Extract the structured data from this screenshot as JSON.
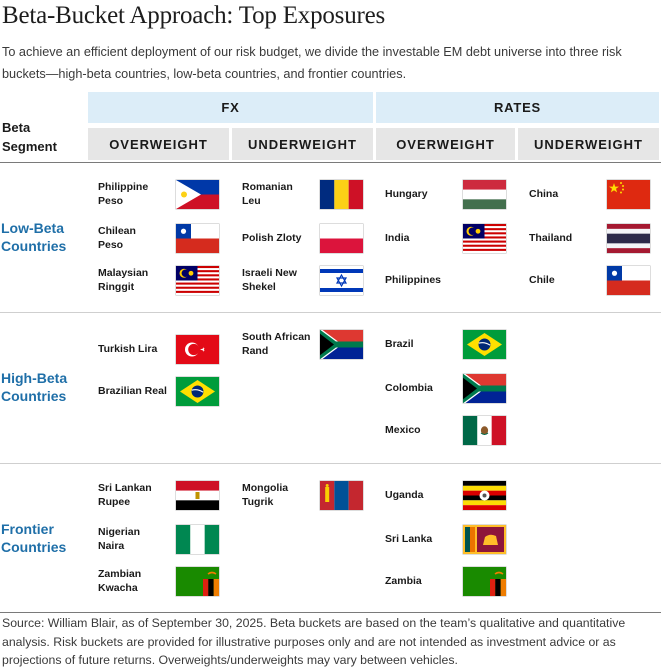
{
  "title": "Beta-Bucket Approach: Top Exposures",
  "subtitle": "To achieve an efficient deployment of our risk budget, we divide the investable EM debt universe into three risk buckets—high-beta countries, low-beta countries, and frontier countries.",
  "headers": {
    "fx": "FX",
    "rates": "RATES",
    "beta_segment_line1": "Beta",
    "beta_segment_line2": "Segment",
    "fx_overweight": "OVERWEIGHT",
    "fx_underweight": "UNDERWEIGHT",
    "rates_overweight": "OVERWEIGHT",
    "rates_underweight": "UNDERWEIGHT"
  },
  "segments": [
    {
      "label_line1": "Low-Beta",
      "label_line2": "Countries",
      "fx_overweight": [
        {
          "line1": "Philippine",
          "line2": "Peso",
          "flag": "philippines-flag"
        },
        {
          "line1": "Chilean",
          "line2": "Peso",
          "flag": "chile-flag"
        },
        {
          "line1": "Malaysian",
          "line2": "Ringgit",
          "flag": "malaysia-flag"
        }
      ],
      "fx_underweight": [
        {
          "line1": "Romanian",
          "line2": "Leu",
          "flag": "romania-flag"
        },
        {
          "line1": "Polish Zloty",
          "line2": "",
          "flag": "poland-flag"
        },
        {
          "line1": "Israeli New",
          "line2": "Shekel",
          "flag": "israel-flag"
        }
      ],
      "rates_overweight": [
        {
          "line1": "Hungary",
          "line2": "",
          "flag": "hungary-flag"
        },
        {
          "line1": "India",
          "line2": "",
          "flag": "malaysia-flag"
        },
        {
          "line1": "Philippines",
          "line2": "",
          "flag": ""
        }
      ],
      "rates_underweight": [
        {
          "line1": "China",
          "line2": "",
          "flag": "china-flag"
        },
        {
          "line1": "Thailand",
          "line2": "",
          "flag": "thailand-flag"
        },
        {
          "line1": "Chile",
          "line2": "",
          "flag": "chile-flag"
        }
      ]
    },
    {
      "label_line1": "High-Beta",
      "label_line2": "Countries",
      "fx_overweight": [
        {
          "line1": "Turkish Lira",
          "line2": "",
          "flag": "turkey-flag"
        },
        {
          "line1": "Brazilian Real",
          "line2": "",
          "flag": "brazil-flag"
        }
      ],
      "fx_underweight": [
        {
          "line1": "South African",
          "line2": "Rand",
          "flag": "south-africa-flag"
        }
      ],
      "rates_overweight": [
        {
          "line1": "Brazil",
          "line2": "",
          "flag": "brazil-flag"
        },
        {
          "line1": "Colombia",
          "line2": "",
          "flag": "south-africa-flag"
        },
        {
          "line1": "Mexico",
          "line2": "",
          "flag": "mexico-flag"
        }
      ],
      "rates_underweight": []
    },
    {
      "label_line1": "Frontier",
      "label_line2": "Countries",
      "fx_overweight": [
        {
          "line1": "Sri Lankan",
          "line2": "Rupee",
          "flag": "egypt-flag"
        },
        {
          "line1": "Nigerian",
          "line2": "Naira",
          "flag": "nigeria-flag"
        },
        {
          "line1": "Zambian",
          "line2": "Kwacha",
          "flag": "zambia-flag"
        }
      ],
      "fx_underweight": [
        {
          "line1": "Mongolia",
          "line2": "Tugrik",
          "flag": "mongolia-flag"
        }
      ],
      "rates_overweight": [
        {
          "line1": "Uganda",
          "line2": "",
          "flag": "uganda-flag"
        },
        {
          "line1": "Sri Lanka",
          "line2": "",
          "flag": "sri-lanka-flag"
        },
        {
          "line1": "Zambia",
          "line2": "",
          "flag": "zambia-flag"
        }
      ],
      "rates_underweight": []
    }
  ],
  "footnote": "Source: William Blair, as of September 30, 2025. Beta buckets are based on the team’s qualitative and quantitative analysis. Risk buckets are provided for illustrative purposes only and are not intended as investment advice or as projections of future returns. Overweights/underweights may vary between vehicles."
}
